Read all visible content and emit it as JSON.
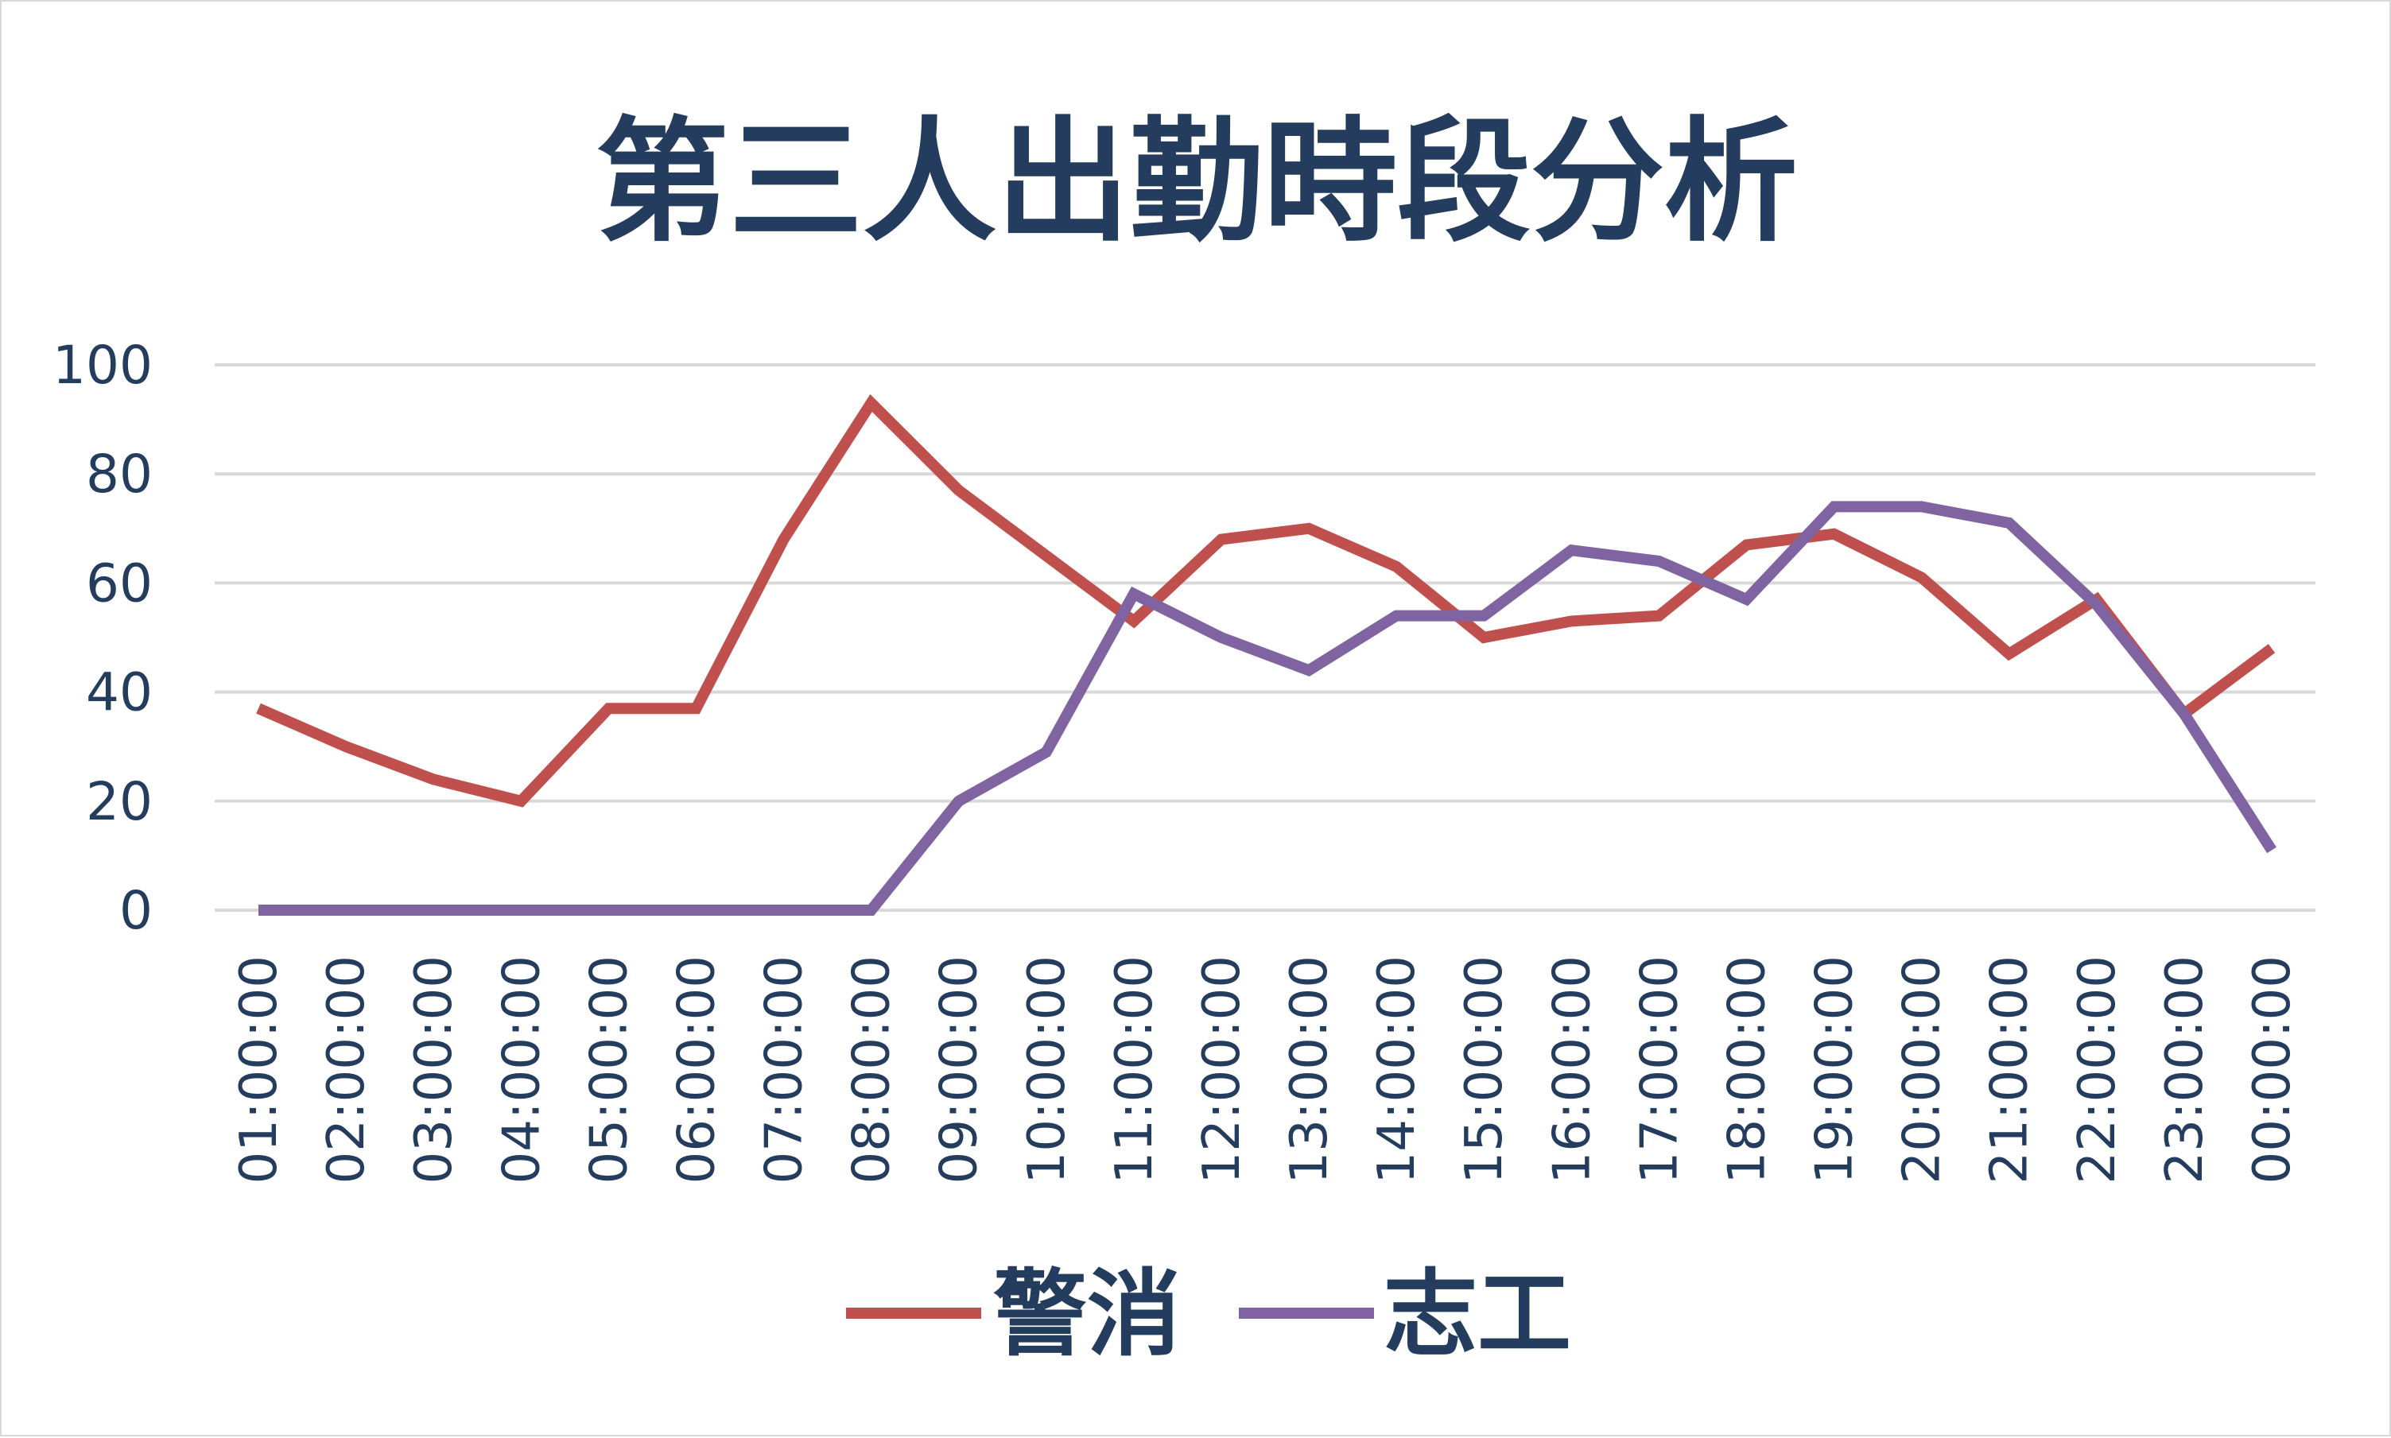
{
  "chart_data": {
    "type": "line",
    "title": "第三人出勤時段分析",
    "xlabel": "",
    "ylabel": "",
    "ylim": [
      0,
      100
    ],
    "yticks": [
      0,
      20,
      40,
      60,
      80,
      100
    ],
    "grid": true,
    "legend_position": "bottom",
    "categories": [
      "01:00:00",
      "02:00:00",
      "03:00:00",
      "04:00:00",
      "05:00:00",
      "06:00:00",
      "07:00:00",
      "08:00:00",
      "09:00:00",
      "10:00:00",
      "11:00:00",
      "12:00:00",
      "13:00:00",
      "14:00:00",
      "15:00:00",
      "16:00:00",
      "17:00:00",
      "18:00:00",
      "19:00:00",
      "20:00:00",
      "21:00:00",
      "22:00:00",
      "23:00:00",
      "00:00:00"
    ],
    "series": [
      {
        "name": "警消",
        "color": "#c0504d",
        "values": [
          37,
          30,
          24,
          20,
          37,
          37,
          68,
          93,
          77,
          65,
          53,
          68,
          70,
          63,
          50,
          53,
          54,
          67,
          69,
          61,
          47,
          57,
          36,
          48
        ]
      },
      {
        "name": "志工",
        "color": "#8064a2",
        "values": [
          0,
          0,
          0,
          0,
          0,
          0,
          0,
          0,
          20,
          29,
          58,
          50,
          44,
          54,
          54,
          66,
          64,
          57,
          74,
          74,
          71,
          56,
          36,
          11
        ]
      }
    ]
  }
}
